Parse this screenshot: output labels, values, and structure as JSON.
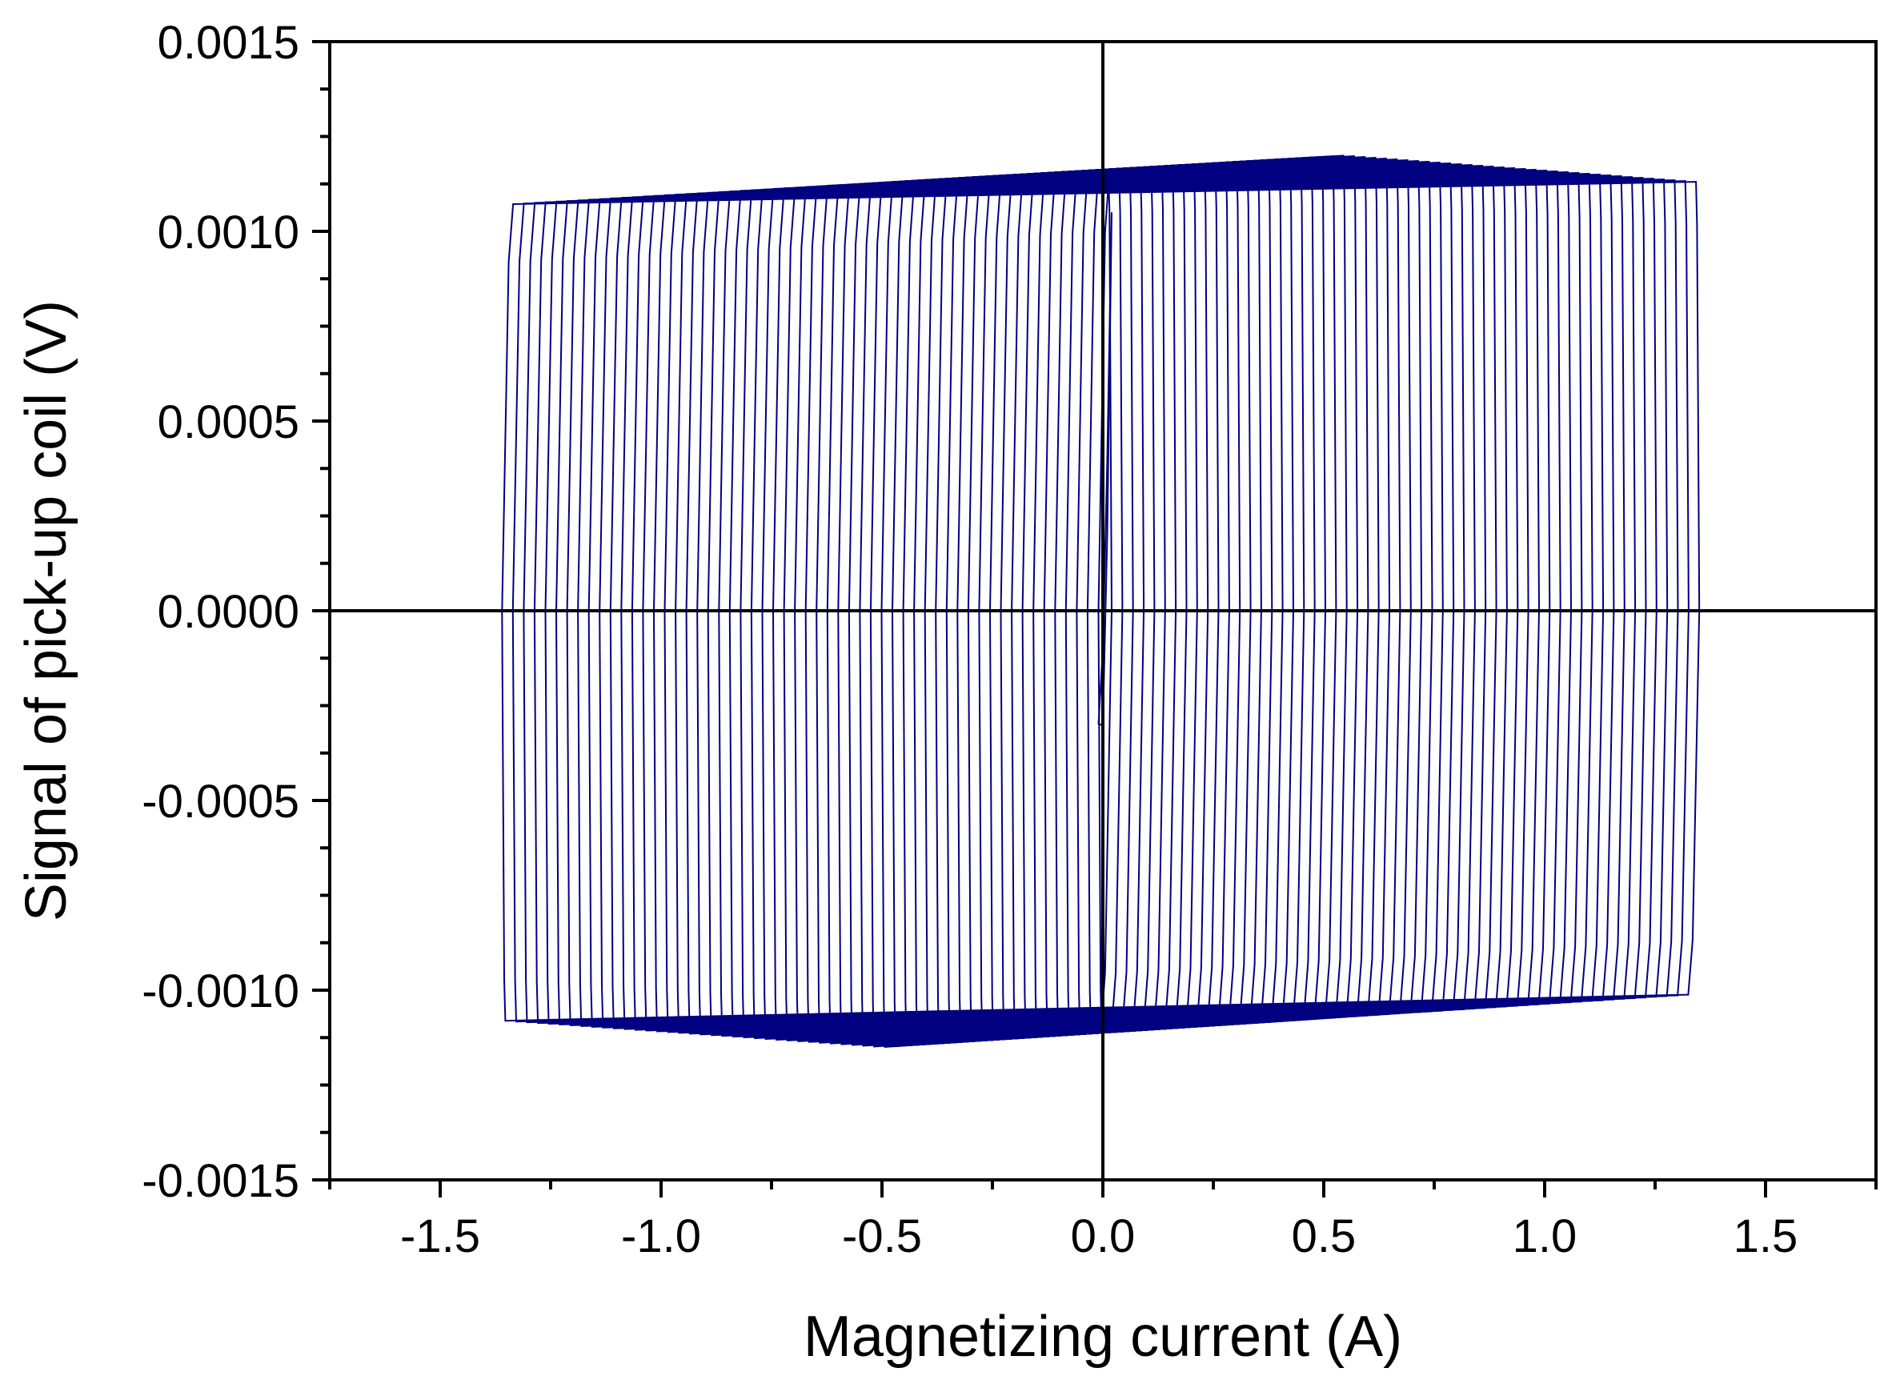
{
  "chart_data": {
    "type": "line",
    "title": "",
    "xlabel": "Magnetizing current  (A)",
    "ylabel": "Signal of pick-up coil  (V)",
    "xlim": [
      -1.75,
      1.75
    ],
    "ylim": [
      -0.0015,
      0.0015
    ],
    "x_ticks": [
      -1.5,
      -1.0,
      -0.5,
      0.0,
      0.5,
      1.0,
      1.5
    ],
    "x_tick_labels": [
      "-1.5",
      "-1.0",
      "-0.5",
      "0.0",
      "0.5",
      "1.0",
      "1.5"
    ],
    "y_ticks": [
      -0.0015,
      -0.001,
      -0.0005,
      0.0,
      0.0005,
      0.001,
      0.0015
    ],
    "y_tick_labels": [
      "-0.0015",
      "-0.0010",
      "-0.0005",
      "0.0000",
      "0.0005",
      "0.0010",
      "0.0015"
    ],
    "grid": false,
    "zero_lines": true,
    "series_color": "#000080",
    "description_loops": {
      "count": 56,
      "left_edge_min": -1.36,
      "right_edge_max": 1.35,
      "right_edge_min": 0.02,
      "left_edge_min_inner": -0.01,
      "top_plateau_left": 0.00107,
      "top_plateau_peak": 0.0012,
      "top_plateau_peak_x": 0.55,
      "bottom_plateau_left": -0.00108,
      "bottom_plateau_trough": -0.00115,
      "bottom_plateau_trough_x": -0.5,
      "bottom_plateau_right": -0.00101
    },
    "central_trace": {
      "x": [
        -0.01,
        0.0,
        0.01,
        0.02,
        0.01,
        0.0,
        -0.01,
        -0.01
      ],
      "y": [
        -0.0003,
        -0.0001,
        0.0004,
        0.00105,
        0.0002,
        -0.0003,
        -0.0003,
        -0.0003
      ]
    }
  }
}
